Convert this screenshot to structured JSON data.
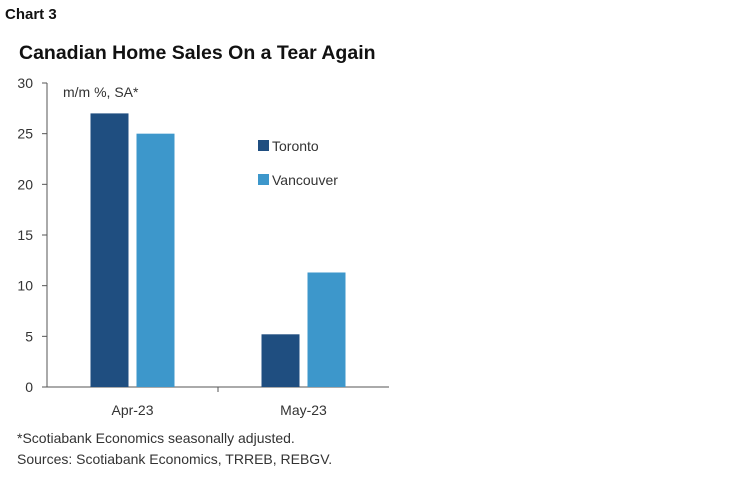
{
  "header": {
    "chart_number": "Chart 3"
  },
  "footnotes": {
    "note": "*Scotiabank Economics seasonally adjusted.",
    "sources": "Sources: Scotiabank Economics, TRREB, REBGV."
  },
  "colors": {
    "toronto": "#1f4e80",
    "vancouver": "#3d97cb",
    "axis": "#555555"
  },
  "chart_data": {
    "type": "bar",
    "title": "Canadian Home Sales On a Tear Again",
    "ylabel": "m/m %, SA*",
    "xlabel": "",
    "categories": [
      "Apr-23",
      "May-23"
    ],
    "series": [
      {
        "name": "Toronto",
        "values": [
          27.0,
          5.2
        ],
        "color": "#1f4e80"
      },
      {
        "name": "Vancouver",
        "values": [
          25.0,
          11.3
        ],
        "color": "#3d97cb"
      }
    ],
    "ylim": [
      0,
      30
    ],
    "yticks": [
      "0",
      "5",
      "10",
      "15",
      "20",
      "25",
      "30"
    ],
    "grid": false,
    "legend_position": "right"
  }
}
